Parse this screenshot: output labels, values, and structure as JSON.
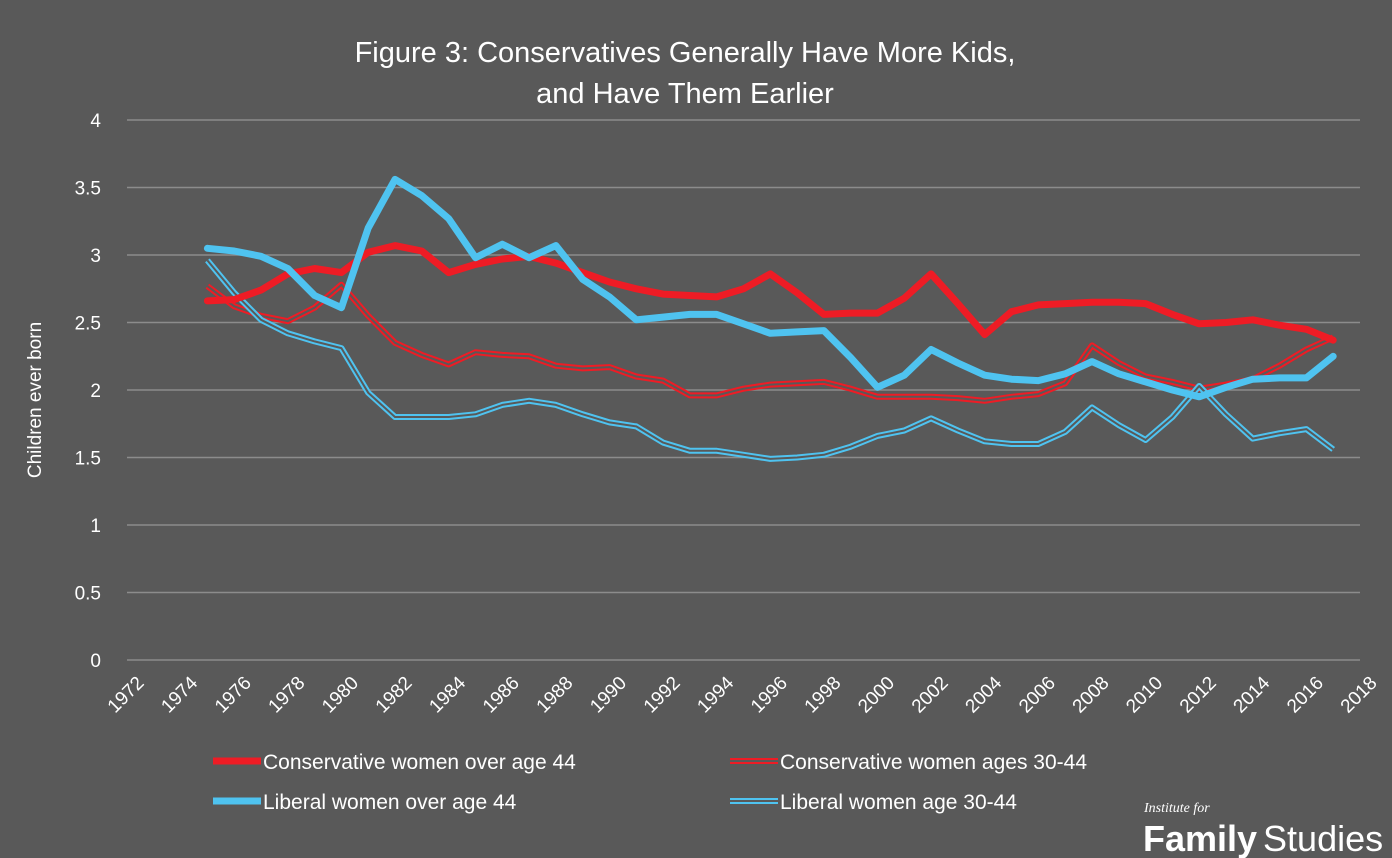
{
  "chart_data": {
    "type": "line",
    "title_lines": [
      "Figure 3: Conservatives Generally Have More Kids,",
      "and Have Them Earlier"
    ],
    "xlabel": "",
    "ylabel": "Children ever born",
    "xlim": [
      1972,
      2018
    ],
    "ylim": [
      0,
      4
    ],
    "y_ticks": [
      0,
      0.5,
      1,
      1.5,
      2,
      2.5,
      3,
      3.5,
      4
    ],
    "y_tick_labels": [
      "0",
      "0.5",
      "1",
      "1.5",
      "2",
      "2.5",
      "3",
      "3.5",
      "4"
    ],
    "x_ticks": [
      1972,
      1974,
      1976,
      1978,
      1980,
      1982,
      1984,
      1986,
      1988,
      1990,
      1992,
      1994,
      1996,
      1998,
      2000,
      2002,
      2004,
      2006,
      2008,
      2010,
      2012,
      2014,
      2016,
      2018
    ],
    "x_tick_labels": [
      "1972",
      "1974",
      "1976",
      "1978",
      "1980",
      "1982",
      "1984",
      "1986",
      "1988",
      "1990",
      "1992",
      "1994",
      "1996",
      "1998",
      "2000",
      "2002",
      "2004",
      "2006",
      "2008",
      "2010",
      "2012",
      "2014",
      "2016",
      "2018"
    ],
    "grid": true,
    "legend_position": "bottom",
    "x": [
      1975,
      1976,
      1977,
      1978,
      1979,
      1980,
      1981,
      1982,
      1983,
      1984,
      1985,
      1986,
      1987,
      1988,
      1989,
      1990,
      1991,
      1992,
      1993,
      1994,
      1995,
      1996,
      1997,
      1998,
      1999,
      2000,
      2001,
      2002,
      2003,
      2004,
      2005,
      2006,
      2007,
      2008,
      2009,
      2010,
      2011,
      2012,
      2013,
      2014,
      2015,
      2016,
      2017
    ],
    "series": [
      {
        "name": "Conservative women over age 44",
        "color": "#ee1c25",
        "style": "thick",
        "values": [
          2.66,
          2.67,
          2.74,
          2.86,
          2.9,
          2.87,
          3.02,
          3.07,
          3.03,
          2.87,
          2.93,
          2.97,
          2.99,
          2.94,
          2.87,
          2.8,
          2.75,
          2.71,
          2.7,
          2.69,
          2.75,
          2.86,
          2.72,
          2.56,
          2.57,
          2.57,
          2.68,
          2.86,
          2.64,
          2.41,
          2.58,
          2.63,
          2.64,
          2.65,
          2.65,
          2.64,
          2.56,
          2.49,
          2.5,
          2.52,
          2.48,
          2.45,
          2.37
        ]
      },
      {
        "name": "Conservative women ages 30-44",
        "color": "#ee1c25",
        "style": "double",
        "values": [
          2.77,
          2.62,
          2.55,
          2.51,
          2.61,
          2.78,
          2.55,
          2.35,
          2.26,
          2.19,
          2.28,
          2.26,
          2.25,
          2.18,
          2.16,
          2.17,
          2.1,
          2.07,
          1.96,
          1.96,
          2.01,
          2.04,
          2.05,
          2.06,
          2.01,
          1.95,
          1.95,
          1.95,
          1.94,
          1.92,
          1.95,
          1.97,
          2.05,
          2.33,
          2.2,
          2.1,
          2.06,
          2.01,
          2.04,
          2.08,
          2.18,
          2.3,
          2.39
        ]
      },
      {
        "name": "Liberal women over age 44",
        "color": "#4fc3f0",
        "style": "thick",
        "values": [
          3.05,
          3.03,
          2.99,
          2.9,
          2.7,
          2.61,
          3.2,
          3.56,
          3.44,
          3.27,
          2.98,
          3.08,
          2.98,
          3.07,
          2.82,
          2.69,
          2.52,
          2.54,
          2.56,
          2.56,
          2.49,
          2.42,
          2.43,
          2.44,
          2.24,
          2.02,
          2.11,
          2.3,
          2.2,
          2.11,
          2.08,
          2.07,
          2.12,
          2.21,
          2.12,
          2.06,
          2.0,
          1.95,
          2.02,
          2.08,
          2.09,
          2.09,
          2.25
        ]
      },
      {
        "name": "Liberal women age 30-44",
        "color": "#4fc3f0",
        "style": "double",
        "values": [
          2.96,
          2.72,
          2.52,
          2.42,
          2.36,
          2.31,
          1.98,
          1.8,
          1.8,
          1.8,
          1.82,
          1.89,
          1.92,
          1.89,
          1.82,
          1.76,
          1.73,
          1.61,
          1.55,
          1.55,
          1.52,
          1.49,
          1.5,
          1.52,
          1.58,
          1.66,
          1.7,
          1.79,
          1.7,
          1.62,
          1.6,
          1.6,
          1.69,
          1.87,
          1.74,
          1.63,
          1.8,
          2.03,
          1.82,
          1.64,
          1.68,
          1.71,
          1.56
        ]
      }
    ]
  },
  "branding": {
    "small": "Institute for",
    "bold": "Family",
    "regular": "Studies"
  }
}
